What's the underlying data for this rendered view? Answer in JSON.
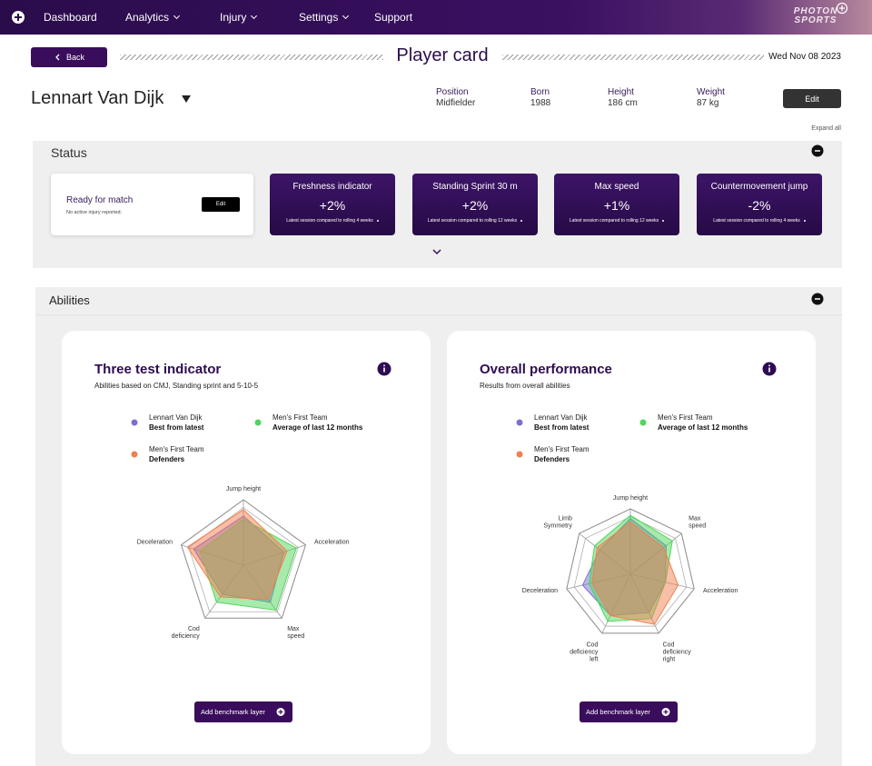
{
  "nav": {
    "items": [
      {
        "label": "Dashboard",
        "dropdown": false
      },
      {
        "label": "Analytics",
        "dropdown": true
      },
      {
        "label": "Injury",
        "dropdown": true
      },
      {
        "label": "Settings",
        "dropdown": true
      },
      {
        "label": "Support",
        "dropdown": false
      }
    ],
    "brand": "PHOTON SPORTS"
  },
  "header": {
    "back": "Back",
    "title": "Player card",
    "date": "Wed Nov 08 2023"
  },
  "player": {
    "name": "Lennart Van Dijk",
    "fields": [
      {
        "label": "Position",
        "value": "Midfielder"
      },
      {
        "label": "Born",
        "value": "1988"
      },
      {
        "label": "Height",
        "value": "186 cm"
      },
      {
        "label": "Weight",
        "value": "87 kg"
      }
    ],
    "edit": "Edit",
    "expand_all": "Expand all"
  },
  "status": {
    "title": "Status",
    "readiness": {
      "title": "Ready for match",
      "note": "No active injury reported.",
      "edit": "Edit"
    },
    "cards": [
      {
        "title": "Freshness indicator",
        "value": "+2%",
        "note": "Latest session compared to rolling 4 weeks"
      },
      {
        "title": "Standing Sprint 30 m",
        "value": "+2%",
        "note": "Latest session compared to rolling 12 weeks"
      },
      {
        "title": "Max speed",
        "value": "+1%",
        "note": "Latest session compared to rolling 12 weeks"
      },
      {
        "title": "Countermovement jump",
        "value": "-2%",
        "note": "Latest session compared to rolling 4 weeks"
      }
    ]
  },
  "abilities": {
    "title": "Abilities",
    "charts": [
      {
        "type": "radar",
        "title": "Three test indicator",
        "subtitle": "Abilities based on CMJ, Standing sprint and 5-10-5",
        "axes": [
          [
            "Jump height"
          ],
          [
            "Acceleration"
          ],
          [
            "Max",
            "speed"
          ],
          [
            "Cod",
            "deficiency"
          ],
          [
            "Deceleration"
          ]
        ],
        "rlim": [
          0,
          100
        ],
        "series": [
          {
            "name": "Lennart Van Dijk",
            "detail": "Best from latest",
            "color": "#7b6fd6",
            "values": [
              75,
              65,
              70,
              55,
              80
            ]
          },
          {
            "name": "Men's First Team",
            "detail": "Average of last 12 months",
            "color": "#4fd65a",
            "values": [
              70,
              85,
              85,
              70,
              70
            ]
          },
          {
            "name": "Men's First Team",
            "detail": "Defenders",
            "color": "#f0804f",
            "values": [
              85,
              70,
              65,
              60,
              90
            ]
          }
        ],
        "button": "Add benchmark layer"
      },
      {
        "type": "radar",
        "title": "Overall performance",
        "subtitle": "Results from overall abilities",
        "axes": [
          [
            "Jump height"
          ],
          [
            "Max",
            "speed"
          ],
          [
            "Acceleration"
          ],
          [
            "Cod",
            "deficiency",
            "right"
          ],
          [
            "Cod",
            "deficiency",
            "left"
          ],
          [
            "Deceleration"
          ],
          [
            "Limb",
            "Symmetry"
          ]
        ],
        "rlim": [
          0,
          100
        ],
        "series": [
          {
            "name": "Lennart Van Dijk",
            "detail": "Best from latest",
            "color": "#7b6fd6",
            "values": [
              85,
              70,
              55,
              65,
              70,
              75,
              60
            ]
          },
          {
            "name": "Men's First Team",
            "detail": "Average of last 12 months",
            "color": "#4fd65a",
            "values": [
              90,
              82,
              55,
              75,
              80,
              65,
              70
            ]
          },
          {
            "name": "Men's First Team",
            "detail": "Defenders",
            "color": "#f0804f",
            "values": [
              80,
              65,
              75,
              85,
              70,
              60,
              65
            ]
          }
        ],
        "button": "Add benchmark layer"
      }
    ]
  }
}
